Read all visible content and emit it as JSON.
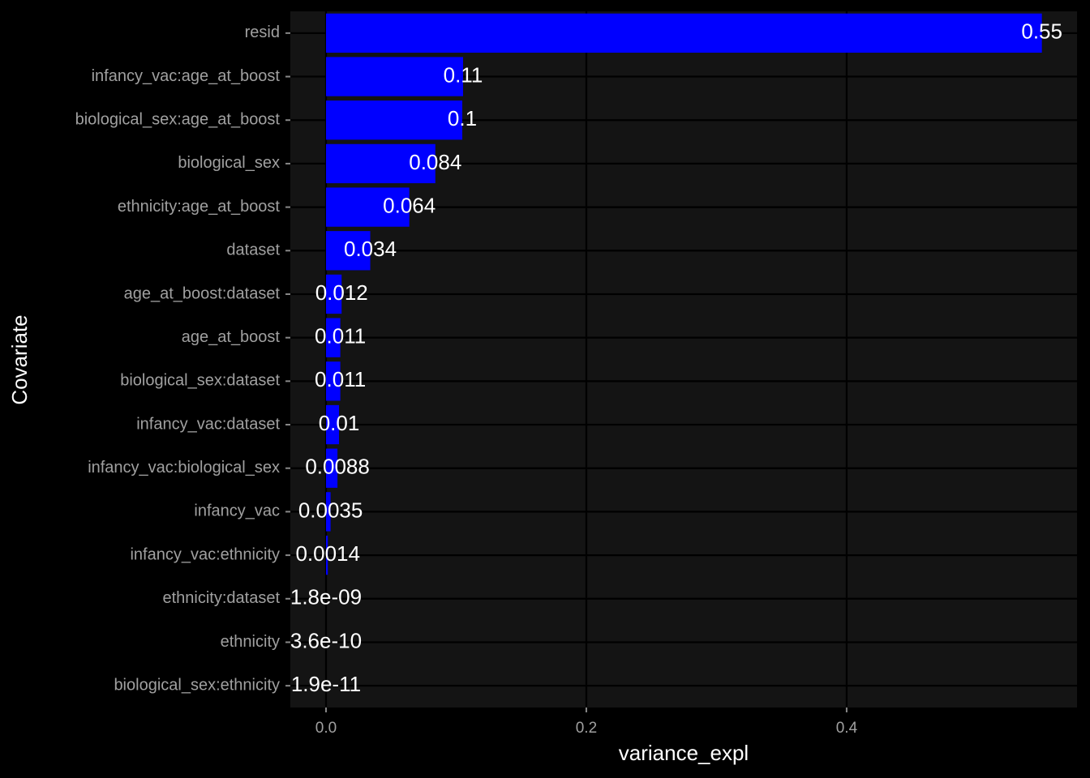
{
  "chart_data": {
    "type": "barh",
    "x_label": "variance_expl",
    "y_label": "Covariate",
    "categories": [
      "resid",
      "infancy_vac:age_at_boost",
      "biological_sex:age_at_boost",
      "biological_sex",
      "ethnicity:age_at_boost",
      "dataset",
      "age_at_boost:dataset",
      "age_at_boost",
      "biological_sex:dataset",
      "infancy_vac:dataset",
      "infancy_vac:biological_sex",
      "infancy_vac",
      "infancy_vac:ethnicity",
      "ethnicity:dataset",
      "ethnicity",
      "biological_sex:ethnicity"
    ],
    "values": [
      0.55,
      0.1053,
      0.1047,
      0.084,
      0.064,
      0.034,
      0.012,
      0.011,
      0.011,
      0.01,
      0.0088,
      0.0035,
      0.0014,
      1.8e-09,
      3.6e-10,
      1.9e-11
    ],
    "value_labels": [
      "0.55",
      "0.11",
      "0.1",
      "0.084",
      "0.064",
      "0.034",
      "0.012",
      "0.011",
      "0.011",
      "0.01",
      "0.0088",
      "0.0035",
      "0.0014",
      "1.8e-09",
      "3.6e-10",
      "1.9e-11"
    ],
    "color": "#0000ff",
    "xlim": [
      -0.0274,
      0.577
    ],
    "xticks": [
      {
        "value": 0,
        "label": "0.0"
      },
      0.2,
      0.4
    ],
    "grid": true
  }
}
